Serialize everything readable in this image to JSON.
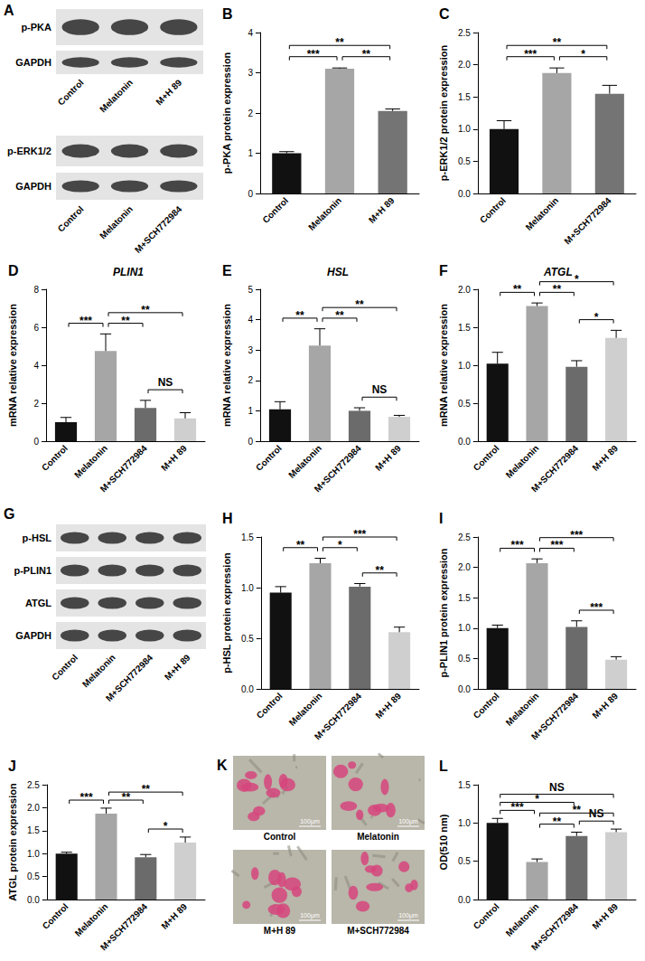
{
  "chart_data": [
    {
      "panel": "B",
      "type": "bar",
      "ylabel": "p-PKA protein expression",
      "categories": [
        "Control",
        "Melatonin",
        "M+H 89"
      ],
      "values": [
        1.0,
        3.1,
        2.05
      ],
      "errors": [
        0.04,
        0.02,
        0.05
      ],
      "colors": [
        "#111111",
        "#a6a6a6",
        "#747474"
      ],
      "ylim": [
        0,
        4
      ],
      "yticks": [
        0,
        1,
        2,
        3,
        4
      ],
      "grid": false,
      "significance": [
        {
          "from": "Control",
          "to": "Melatonin",
          "label": "***"
        },
        {
          "from": "Melatonin",
          "to": "M+H 89",
          "label": "**"
        },
        {
          "from": "Control",
          "to": "M+H 89",
          "label": "**"
        }
      ]
    },
    {
      "panel": "C",
      "type": "bar",
      "ylabel": "p-ERK1/2 protein expression",
      "categories": [
        "Control",
        "Melatonin",
        "M+SCH772984"
      ],
      "values": [
        1.0,
        1.87,
        1.55
      ],
      "errors": [
        0.13,
        0.08,
        0.13
      ],
      "colors": [
        "#111111",
        "#a6a6a6",
        "#747474"
      ],
      "ylim": [
        0,
        2.5
      ],
      "yticks": [
        {
          "value": 0,
          "label": "0.0"
        },
        0.5,
        {
          "value": 1,
          "label": "1.0"
        },
        1.5,
        {
          "value": 2,
          "label": "2.0"
        },
        2.5
      ],
      "grid": false,
      "significance": [
        {
          "from": "Control",
          "to": "Melatonin",
          "label": "***"
        },
        {
          "from": "Melatonin",
          "to": "M+SCH772984",
          "label": "*"
        },
        {
          "from": "Control",
          "to": "M+SCH772984",
          "label": "**"
        }
      ]
    },
    {
      "panel": "D",
      "type": "bar",
      "title": "PLIN1",
      "ylabel": "mRNA relative expression",
      "categories": [
        "Control",
        "Melatonin",
        "M+SCH772984",
        "M+H 89"
      ],
      "values": [
        1.0,
        4.75,
        1.75,
        1.2
      ],
      "errors": [
        0.25,
        0.9,
        0.4,
        0.3
      ],
      "colors": [
        "#111111",
        "#a6a6a6",
        "#6b6b6b",
        "#cfcfcf"
      ],
      "ylim": [
        0,
        8
      ],
      "yticks": [
        0,
        2,
        4,
        6,
        8
      ],
      "grid": false,
      "significance": [
        {
          "from": "Control",
          "to": "Melatonin",
          "label": "***"
        },
        {
          "from": "Melatonin",
          "to": "M+SCH772984",
          "label": "**"
        },
        {
          "from": "Melatonin",
          "to": "M+H 89",
          "label": "**"
        },
        {
          "from": "M+SCH772984",
          "to": "M+H 89",
          "label": "NS"
        }
      ]
    },
    {
      "panel": "E",
      "type": "bar",
      "title": "HSL",
      "ylabel": "mRNA relative expression",
      "categories": [
        "Control",
        "Melatonin",
        "M+SCH772984",
        "M+H 89"
      ],
      "values": [
        1.05,
        3.15,
        1.0,
        0.8
      ],
      "errors": [
        0.25,
        0.55,
        0.1,
        0.05
      ],
      "colors": [
        "#111111",
        "#a6a6a6",
        "#6b6b6b",
        "#cfcfcf"
      ],
      "ylim": [
        0,
        5
      ],
      "yticks": [
        0,
        1,
        2,
        3,
        4,
        5
      ],
      "grid": false,
      "significance": [
        {
          "from": "Control",
          "to": "Melatonin",
          "label": "**"
        },
        {
          "from": "Melatonin",
          "to": "M+SCH772984",
          "label": "**"
        },
        {
          "from": "Melatonin",
          "to": "M+H 89",
          "label": "**"
        },
        {
          "from": "M+SCH772984",
          "to": "M+H 89",
          "label": "NS"
        }
      ]
    },
    {
      "panel": "F",
      "type": "bar",
      "title": "ATGL",
      "ylabel": "mRNA relative expression",
      "categories": [
        "Control",
        "Melatonin",
        "M+SCH772984",
        "M+H 89"
      ],
      "values": [
        1.02,
        1.78,
        0.98,
        1.36
      ],
      "errors": [
        0.15,
        0.04,
        0.08,
        0.1
      ],
      "colors": [
        "#111111",
        "#a6a6a6",
        "#6b6b6b",
        "#cfcfcf"
      ],
      "ylim": [
        0,
        2
      ],
      "yticks": [
        {
          "value": 0,
          "label": "0.0"
        },
        0.5,
        {
          "value": 1,
          "label": "1.0"
        },
        1.5,
        {
          "value": 2,
          "label": "2.0"
        }
      ],
      "grid": false,
      "significance": [
        {
          "from": "Control",
          "to": "Melatonin",
          "label": "**"
        },
        {
          "from": "Melatonin",
          "to": "M+SCH772984",
          "label": "**"
        },
        {
          "from": "Melatonin",
          "to": "M+H 89",
          "label": "*"
        },
        {
          "from": "M+SCH772984",
          "to": "M+H 89",
          "label": "*"
        }
      ]
    },
    {
      "panel": "H",
      "type": "bar",
      "ylabel": "p-HSL protein expression",
      "categories": [
        "Control",
        "Melatonin",
        "M+SCH772984",
        "M+H 89"
      ],
      "values": [
        0.95,
        1.24,
        1.01,
        0.56
      ],
      "errors": [
        0.06,
        0.05,
        0.03,
        0.05
      ],
      "colors": [
        "#111111",
        "#a6a6a6",
        "#6b6b6b",
        "#cfcfcf"
      ],
      "ylim": [
        0,
        1.5
      ],
      "yticks": [
        {
          "value": 0,
          "label": "0.0"
        },
        0.5,
        {
          "value": 1,
          "label": "1.0"
        },
        1.5
      ],
      "grid": false,
      "significance": [
        {
          "from": "Control",
          "to": "Melatonin",
          "label": "**"
        },
        {
          "from": "Melatonin",
          "to": "M+SCH772984",
          "label": "*"
        },
        {
          "from": "Melatonin",
          "to": "M+H 89",
          "label": "***"
        },
        {
          "from": "M+SCH772984",
          "to": "M+H 89",
          "label": "**"
        }
      ]
    },
    {
      "panel": "I",
      "type": "bar",
      "ylabel": "p-PLIN1 protein expression",
      "categories": [
        "Control",
        "Melatonin",
        "M+SCH772984",
        "M+H 89"
      ],
      "values": [
        1.0,
        2.07,
        1.02,
        0.48
      ],
      "errors": [
        0.05,
        0.07,
        0.1,
        0.05
      ],
      "colors": [
        "#111111",
        "#a6a6a6",
        "#6b6b6b",
        "#cfcfcf"
      ],
      "ylim": [
        0,
        2.5
      ],
      "yticks": [
        {
          "value": 0,
          "label": "0.0"
        },
        0.5,
        {
          "value": 1,
          "label": "1.0"
        },
        1.5,
        {
          "value": 2,
          "label": "2.0"
        },
        2.5
      ],
      "grid": false,
      "significance": [
        {
          "from": "Control",
          "to": "Melatonin",
          "label": "***"
        },
        {
          "from": "Melatonin",
          "to": "M+SCH772984",
          "label": "***"
        },
        {
          "from": "Melatonin",
          "to": "M+H 89",
          "label": "***"
        },
        {
          "from": "M+SCH772984",
          "to": "M+H 89",
          "label": "***"
        }
      ]
    },
    {
      "panel": "J",
      "type": "bar",
      "ylabel": "ATGL protein expression",
      "categories": [
        "Control",
        "Melatonin",
        "M+SCH772984",
        "M+H 89"
      ],
      "values": [
        1.0,
        1.87,
        0.92,
        1.24
      ],
      "errors": [
        0.03,
        0.12,
        0.06,
        0.12
      ],
      "colors": [
        "#111111",
        "#a6a6a6",
        "#6b6b6b",
        "#cfcfcf"
      ],
      "ylim": [
        0,
        2.5
      ],
      "yticks": [
        {
          "value": 0,
          "label": "0.0"
        },
        0.5,
        {
          "value": 1,
          "label": "1.0"
        },
        1.5,
        {
          "value": 2,
          "label": "2.0"
        },
        2.5
      ],
      "grid": false,
      "significance": [
        {
          "from": "Control",
          "to": "Melatonin",
          "label": "***"
        },
        {
          "from": "Melatonin",
          "to": "M+SCH772984",
          "label": "**"
        },
        {
          "from": "Melatonin",
          "to": "M+H 89",
          "label": "**"
        },
        {
          "from": "M+SCH772984",
          "to": "M+H 89",
          "label": "*"
        }
      ]
    },
    {
      "panel": "L",
      "type": "bar",
      "ylabel": "OD(510 nm)",
      "categories": [
        "Control",
        "Melatonin",
        "M+SCH772984",
        "M+H 89"
      ],
      "values": [
        1.0,
        0.49,
        0.83,
        0.88
      ],
      "errors": [
        0.06,
        0.04,
        0.05,
        0.04
      ],
      "colors": [
        "#111111",
        "#a6a6a6",
        "#6b6b6b",
        "#cfcfcf"
      ],
      "ylim": [
        0,
        1.5
      ],
      "yticks": [
        {
          "value": 0,
          "label": "0.0"
        },
        0.5,
        {
          "value": 1,
          "label": "1.0"
        },
        1.5
      ],
      "grid": false,
      "significance": [
        {
          "from": "Control",
          "to": "Melatonin",
          "label": "***"
        },
        {
          "from": "Melatonin",
          "to": "M+SCH772984",
          "label": "**"
        },
        {
          "from": "M+SCH772984",
          "to": "M+H 89",
          "label": "NS"
        },
        {
          "from": "Melatonin",
          "to": "M+H 89",
          "label": "**"
        },
        {
          "from": "Control",
          "to": "M+SCH772984",
          "label": "*"
        },
        {
          "from": "Control",
          "to": "M+H 89",
          "label": "NS"
        }
      ]
    }
  ],
  "blots": [
    {
      "panel": "A",
      "blocks": [
        {
          "rows": [
            "p-PKA",
            "GAPDH"
          ],
          "lanes": [
            "Control",
            "Melatonin",
            "M+H 89"
          ]
        },
        {
          "rows": [
            "p-ERK1/2",
            "GAPDH"
          ],
          "lanes": [
            "Control",
            "Melatonin",
            "M+SCH772984"
          ]
        }
      ]
    },
    {
      "panel": "G",
      "blocks": [
        {
          "rows": [
            "p-HSL",
            "p-PLIN1",
            "ATGL",
            "GAPDH"
          ],
          "lanes": [
            "Control",
            "Melatonin",
            "M+SCH772984",
            "M+H 89"
          ]
        }
      ]
    }
  ],
  "images": {
    "panel": "K",
    "labels": [
      "Control",
      "Melatonin",
      "M+H 89",
      "M+SCH772984"
    ],
    "scale_bar": "100μm"
  }
}
